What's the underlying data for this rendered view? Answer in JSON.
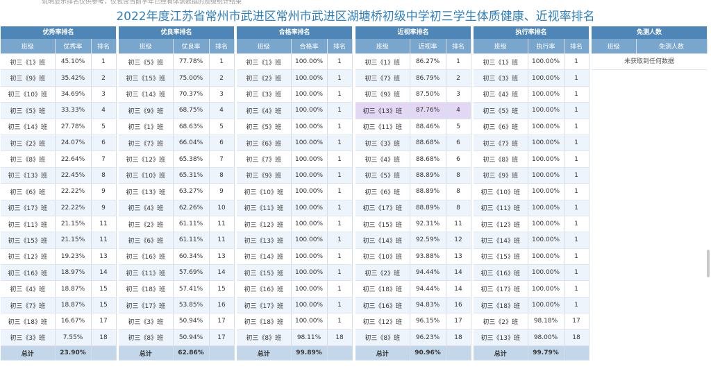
{
  "page": {
    "title": "2022年度江苏省常州市武进区常州市武进区湖塘桥初级中学初三学生体质健康、近视率排名",
    "top_note": "说明显示排名仅供参考，仅包含当前学年已经有体测数据的班级统计结果"
  },
  "sections": [
    {
      "name": "优秀率排名",
      "headers": [
        "班级",
        "优秀率",
        "排名"
      ],
      "rows": [
        [
          "初三《1》班",
          "45.10%",
          "1"
        ],
        [
          "初三《9》班",
          "35.42%",
          "2"
        ],
        [
          "初三《10》班",
          "34.69%",
          "3"
        ],
        [
          "初三《5》班",
          "33.33%",
          "4"
        ],
        [
          "初三《14》班",
          "27.78%",
          "5"
        ],
        [
          "初三《2》班",
          "24.07%",
          "6"
        ],
        [
          "初三《8》班",
          "22.64%",
          "7"
        ],
        [
          "初三《13》班",
          "22.45%",
          "8"
        ],
        [
          "初三《6》班",
          "22.22%",
          "9"
        ],
        [
          "初三《17》班",
          "22.22%",
          "9"
        ],
        [
          "初三《11》班",
          "21.15%",
          "11"
        ],
        [
          "初三《15》班",
          "21.15%",
          "11"
        ],
        [
          "初三《12》班",
          "19.23%",
          "13"
        ],
        [
          "初三《16》班",
          "18.97%",
          "14"
        ],
        [
          "初三《4》班",
          "18.87%",
          "15"
        ],
        [
          "初三《7》班",
          "18.87%",
          "15"
        ],
        [
          "初三《18》班",
          "16.67%",
          "17"
        ],
        [
          "初三《3》班",
          "7.55%",
          "18"
        ]
      ],
      "total_label": "总计",
      "total_value": "23.90%"
    },
    {
      "name": "优良率排名",
      "headers": [
        "班级",
        "优良率",
        "排名"
      ],
      "rows": [
        [
          "初三《5》班",
          "77.78%",
          "1"
        ],
        [
          "初三《15》班",
          "75.00%",
          "2"
        ],
        [
          "初三《14》班",
          "70.37%",
          "3"
        ],
        [
          "初三《9》班",
          "68.75%",
          "4"
        ],
        [
          "初三《1》班",
          "68.63%",
          "5"
        ],
        [
          "初三《7》班",
          "66.04%",
          "6"
        ],
        [
          "初三《12》班",
          "65.38%",
          "7"
        ],
        [
          "初三《10》班",
          "65.31%",
          "8"
        ],
        [
          "初三《13》班",
          "63.27%",
          "9"
        ],
        [
          "初三《4》班",
          "62.26%",
          "10"
        ],
        [
          "初三《2》班",
          "61.11%",
          "11"
        ],
        [
          "初三《6》班",
          "61.11%",
          "11"
        ],
        [
          "初三《16》班",
          "60.34%",
          "13"
        ],
        [
          "初三《11》班",
          "57.69%",
          "14"
        ],
        [
          "初三《18》班",
          "57.41%",
          "15"
        ],
        [
          "初三《17》班",
          "53.85%",
          "16"
        ],
        [
          "初三《3》班",
          "50.94%",
          "17"
        ],
        [
          "初三《8》班",
          "50.94%",
          "17"
        ]
      ],
      "total_label": "总计",
      "total_value": "62.86%"
    },
    {
      "name": "合格率排名",
      "headers": [
        "班级",
        "合格率",
        "排名"
      ],
      "rows": [
        [
          "初三《1》班",
          "100.00%",
          "1"
        ],
        [
          "初三《2》班",
          "100.00%",
          "1"
        ],
        [
          "初三《3》班",
          "100.00%",
          "1"
        ],
        [
          "初三《4》班",
          "100.00%",
          "1"
        ],
        [
          "初三《5》班",
          "100.00%",
          "1"
        ],
        [
          "初三《6》班",
          "100.00%",
          "1"
        ],
        [
          "初三《7》班",
          "100.00%",
          "1"
        ],
        [
          "初三《9》班",
          "100.00%",
          "1"
        ],
        [
          "初三《10》班",
          "100.00%",
          "1"
        ],
        [
          "初三《11》班",
          "100.00%",
          "1"
        ],
        [
          "初三《12》班",
          "100.00%",
          "1"
        ],
        [
          "初三《13》班",
          "100.00%",
          "1"
        ],
        [
          "初三《14》班",
          "100.00%",
          "1"
        ],
        [
          "初三《15》班",
          "100.00%",
          "1"
        ],
        [
          "初三《16》班",
          "100.00%",
          "1"
        ],
        [
          "初三《17》班",
          "100.00%",
          "1"
        ],
        [
          "初三《18》班",
          "100.00%",
          "1"
        ],
        [
          "初三《8》班",
          "98.11%",
          "18"
        ]
      ],
      "total_label": "总计",
      "total_value": "99.89%"
    },
    {
      "name": "近视率排名",
      "headers": [
        "班级",
        "近视率",
        "排名"
      ],
      "rows": [
        [
          "初三《1》班",
          "86.27%",
          "1"
        ],
        [
          "初三《7》班",
          "86.79%",
          "2"
        ],
        [
          "初三《9》班",
          "87.50%",
          "3"
        ],
        [
          "初三《13》班",
          "87.76%",
          "4"
        ],
        [
          "初三《11》班",
          "88.46%",
          "5"
        ],
        [
          "初三《3》班",
          "88.68%",
          "6"
        ],
        [
          "初三《4》班",
          "88.68%",
          "6"
        ],
        [
          "初三《5》班",
          "88.89%",
          "8"
        ],
        [
          "初三《6》班",
          "88.89%",
          "8"
        ],
        [
          "初三《17》班",
          "88.89%",
          "8"
        ],
        [
          "初三《15》班",
          "92.31%",
          "11"
        ],
        [
          "初三《14》班",
          "92.59%",
          "12"
        ],
        [
          "初三《10》班",
          "93.88%",
          "13"
        ],
        [
          "初三《2》班",
          "94.44%",
          "14"
        ],
        [
          "初三《18》班",
          "94.44%",
          "14"
        ],
        [
          "初三《16》班",
          "94.83%",
          "16"
        ],
        [
          "初三《12》班",
          "96.15%",
          "17"
        ],
        [
          "初三《8》班",
          "96.23%",
          "18"
        ]
      ],
      "highlight_row": 3,
      "total_label": "总计",
      "total_value": "90.96%"
    },
    {
      "name": "执行率排名",
      "headers": [
        "班级",
        "执行率",
        "排名"
      ],
      "rows": [
        [
          "初三《1》班",
          "100.00%",
          "1"
        ],
        [
          "初三《3》班",
          "100.00%",
          "1"
        ],
        [
          "初三《4》班",
          "100.00%",
          "1"
        ],
        [
          "初三《5》班",
          "100.00%",
          "1"
        ],
        [
          "初三《6》班",
          "100.00%",
          "1"
        ],
        [
          "初三《7》班",
          "100.00%",
          "1"
        ],
        [
          "初三《8》班",
          "100.00%",
          "1"
        ],
        [
          "初三《9》班",
          "100.00%",
          "1"
        ],
        [
          "初三《10》班",
          "100.00%",
          "1"
        ],
        [
          "初三《11》班",
          "100.00%",
          "1"
        ],
        [
          "初三《12》班",
          "100.00%",
          "1"
        ],
        [
          "初三《14》班",
          "100.00%",
          "1"
        ],
        [
          "初三《15》班",
          "100.00%",
          "1"
        ],
        [
          "初三《16》班",
          "100.00%",
          "1"
        ],
        [
          "初三《17》班",
          "100.00%",
          "1"
        ],
        [
          "初三《18》班",
          "100.00%",
          "1"
        ],
        [
          "初三《2》班",
          "98.18%",
          "17"
        ],
        [
          "初三《13》班",
          "98.00%",
          "18"
        ]
      ],
      "total_label": "总计",
      "total_value": "99.79%"
    }
  ],
  "exempt": {
    "name": "免测人数",
    "headers": [
      "班级",
      "免测人数"
    ],
    "empty_text": "未获取到任何数据"
  },
  "colors": {
    "header": "#4f86b8",
    "subheader": "#79a6cd",
    "row_alt": "#eef4fb",
    "highlight": "#e2d8f4",
    "total": "#c4d7ea",
    "title": "#2f7fbf"
  }
}
